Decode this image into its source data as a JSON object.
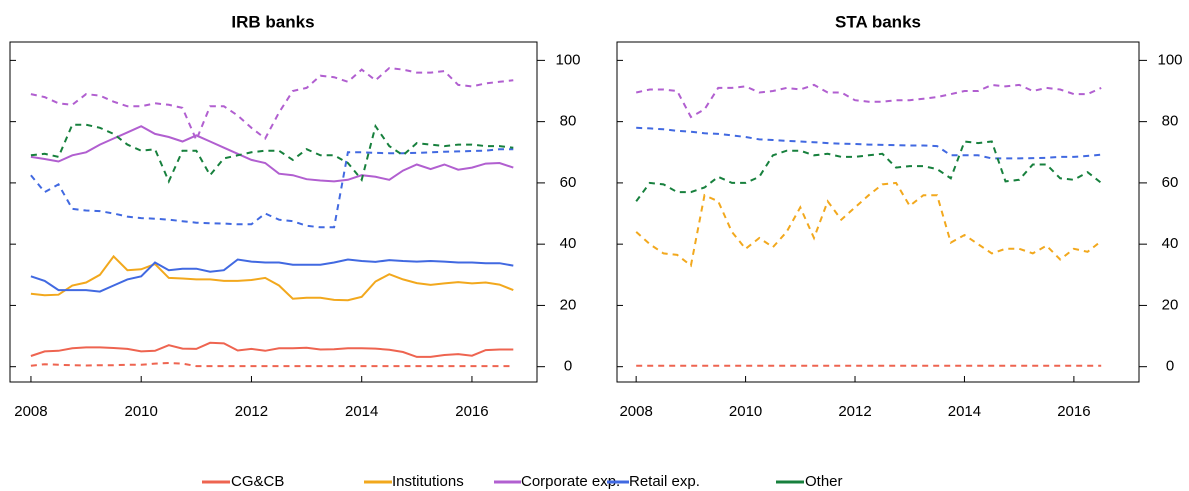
{
  "chart_data": [
    {
      "type": "line",
      "title": "IRB banks",
      "x": [
        2008,
        2008.25,
        2008.5,
        2008.75,
        2009,
        2009.25,
        2009.5,
        2009.75,
        2010,
        2010.25,
        2010.5,
        2010.75,
        2011,
        2011.25,
        2011.5,
        2011.75,
        2012,
        2012.25,
        2012.5,
        2012.75,
        2013,
        2013.25,
        2013.5,
        2013.75,
        2014,
        2014.25,
        2014.5,
        2014.75,
        2015,
        2015.25,
        2015.5,
        2015.75,
        2016,
        2016.25,
        2016.5,
        2016.75
      ],
      "xlim": [
        2007.62,
        2017.18
      ],
      "xticks": [
        2008,
        2010,
        2012,
        2014,
        2016
      ],
      "ylim": [
        -5,
        106
      ],
      "yticks": [
        0,
        20,
        40,
        60,
        80,
        100
      ],
      "series": [
        {
          "name": "CG&CB",
          "color": "#ee6450",
          "dash": false,
          "values": [
            3.5,
            5,
            5.2,
            6,
            6.3,
            6.3,
            6.1,
            5.8,
            5,
            5.2,
            7,
            5.9,
            5.8,
            7.8,
            7.6,
            5.3,
            5.8,
            5.2,
            6,
            6,
            6.2,
            5.6,
            5.7,
            6,
            6,
            5.9,
            5.5,
            4.8,
            3.2,
            3.2,
            3.8,
            4.1,
            3.6,
            5.4,
            5.6,
            5.6
          ]
        },
        {
          "name": "Institutions",
          "color": "#f2a81d",
          "dash": false,
          "values": [
            23.8,
            23.3,
            23.5,
            26.5,
            27.5,
            30,
            36,
            31.5,
            31.8,
            33.5,
            29,
            28.8,
            28.5,
            28.5,
            28,
            28,
            28.3,
            29,
            26.5,
            22.2,
            22.5,
            22.5,
            21.8,
            21.7,
            22.8,
            27.8,
            30.2,
            28.5,
            27.3,
            26.7,
            27.2,
            27.6,
            27.2,
            27.5,
            26.8,
            25
          ]
        },
        {
          "name": "Corporate exp.",
          "color": "#b15fd0",
          "dash": false,
          "values": [
            68.5,
            67.8,
            67,
            69,
            70,
            72.5,
            74.5,
            76.5,
            78.5,
            76,
            75,
            73.5,
            75.5,
            73.5,
            71.5,
            69.5,
            67.5,
            66.5,
            63,
            62.5,
            61.2,
            60.8,
            60.5,
            61,
            62.5,
            62,
            61,
            64,
            66,
            64.5,
            66,
            64.3,
            65,
            66.3,
            66.5,
            65
          ]
        },
        {
          "name": "Retail exp.",
          "color": "#4169e1",
          "dash": false,
          "values": [
            29.5,
            28,
            25,
            25,
            25,
            24.5,
            26.5,
            28.5,
            29.5,
            34,
            31.5,
            32,
            32,
            31,
            31.5,
            35,
            34.3,
            34,
            34,
            33.3,
            33.3,
            33.3,
            34,
            35,
            34.5,
            34.2,
            34.8,
            34.5,
            34.3,
            34.5,
            34.3,
            34,
            34,
            33.8,
            33.8,
            33
          ]
        },
        {
          "name": "CG&CB",
          "color": "#ee6450",
          "dash": true,
          "values": [
            0.3,
            0.8,
            0.6,
            0.5,
            0.4,
            0.5,
            0.5,
            0.6,
            0.6,
            1,
            1.2,
            1,
            0.2,
            0.2,
            0.2,
            0.2,
            0.2,
            0.2,
            0.2,
            0.2,
            0.2,
            0.2,
            0.2,
            0.2,
            0.2,
            0.2,
            0.2,
            0.2,
            0.2,
            0.2,
            0.2,
            0.2,
            0.2,
            0.2,
            0.2,
            0.2
          ]
        },
        {
          "name": "Corporate exp.",
          "color": "#b15fd0",
          "dash": true,
          "values": [
            89,
            88,
            86,
            85.5,
            89,
            88.5,
            86.5,
            85,
            85,
            86,
            85.5,
            84.5,
            74,
            85,
            85,
            82,
            78,
            74.5,
            83,
            90,
            91,
            95,
            94.5,
            93,
            97,
            93.5,
            97.5,
            97,
            96,
            96,
            96.5,
            92,
            91.5,
            92.5,
            93,
            93.5
          ]
        },
        {
          "name": "Retail exp.",
          "color": "#4169e1",
          "dash": true,
          "values": [
            62.5,
            57,
            59.5,
            51.5,
            51,
            50.8,
            50,
            49,
            48.5,
            48.3,
            48,
            47.5,
            47,
            46.8,
            46.7,
            46.5,
            46.5,
            50,
            48,
            47.5,
            46,
            45.5,
            45.5,
            70,
            70,
            69.8,
            69.7,
            69.7,
            69.8,
            70,
            70.2,
            70.3,
            70.4,
            70.5,
            71,
            71
          ]
        },
        {
          "name": "Other",
          "color": "#17803d",
          "dash": true,
          "values": [
            69,
            69.5,
            68.5,
            79,
            79,
            78,
            76,
            72.5,
            70.5,
            71,
            60.5,
            70.5,
            70.5,
            62.5,
            68,
            69,
            70,
            70.5,
            70.5,
            67.5,
            71,
            69,
            69,
            66.5,
            61,
            78.5,
            72,
            69,
            73,
            72.5,
            72,
            72.5,
            72.5,
            72,
            72,
            71.5
          ]
        }
      ]
    },
    {
      "type": "line",
      "title": "STA banks",
      "x": [
        2008,
        2008.25,
        2008.5,
        2008.75,
        2009,
        2009.25,
        2009.5,
        2009.75,
        2010,
        2010.25,
        2010.5,
        2010.75,
        2011,
        2011.25,
        2011.5,
        2011.75,
        2012,
        2012.25,
        2012.5,
        2012.75,
        2013,
        2013.25,
        2013.5,
        2013.75,
        2014,
        2014.25,
        2014.5,
        2014.75,
        2015,
        2015.25,
        2015.5,
        2015.75,
        2016,
        2016.25,
        2016.5
      ],
      "xlim": [
        2007.65,
        2017.19
      ],
      "xticks": [
        2008,
        2010,
        2012,
        2014,
        2016
      ],
      "ylim": [
        -5,
        106
      ],
      "yticks": [
        0,
        20,
        40,
        60,
        80,
        100
      ],
      "series": [
        {
          "name": "CG&CB",
          "color": "#ee6450",
          "dash": true,
          "values": [
            0.3,
            0.3,
            0.3,
            0.3,
            0.3,
            0.3,
            0.3,
            0.3,
            0.3,
            0.3,
            0.3,
            0.3,
            0.3,
            0.3,
            0.3,
            0.3,
            0.3,
            0.3,
            0.3,
            0.3,
            0.3,
            0.3,
            0.3,
            0.3,
            0.3,
            0.3,
            0.3,
            0.3,
            0.3,
            0.3,
            0.3,
            0.3,
            0.3,
            0.3,
            0.3
          ]
        },
        {
          "name": "Institutions",
          "color": "#f2a81d",
          "dash": true,
          "values": [
            44,
            40,
            37,
            36.5,
            33,
            56,
            54,
            44,
            38.5,
            42,
            39,
            44,
            52,
            42,
            54,
            48,
            52,
            56,
            59.5,
            60,
            52.5,
            56,
            56,
            40.5,
            43,
            40,
            37,
            38.5,
            38.5,
            37,
            39.5,
            35,
            38.5,
            37.5,
            41
          ]
        },
        {
          "name": "Corporate exp.",
          "color": "#b15fd0",
          "dash": true,
          "values": [
            89.5,
            90.5,
            90.5,
            90,
            81.5,
            84,
            91,
            91,
            91.5,
            89.5,
            90,
            91,
            90.5,
            92,
            89.5,
            89.5,
            87,
            86.5,
            86.5,
            87,
            87,
            87.5,
            88,
            89,
            90,
            90,
            92,
            91.5,
            92,
            90,
            91,
            90.5,
            89,
            89,
            91
          ]
        },
        {
          "name": "Retail exp.",
          "color": "#4169e1",
          "dash": true,
          "values": [
            78,
            77.8,
            77.5,
            77,
            76.7,
            76.2,
            76,
            75.5,
            75,
            74.2,
            74,
            73.7,
            73.5,
            73.3,
            73,
            72.8,
            72.7,
            72.5,
            72.4,
            72.3,
            72.2,
            72.2,
            72,
            69,
            69,
            69,
            68,
            68,
            68,
            68.1,
            68.2,
            68.5,
            68.5,
            68.8,
            69.2
          ]
        },
        {
          "name": "Other",
          "color": "#17803d",
          "dash": true,
          "values": [
            54,
            60,
            59.5,
            57,
            57,
            58.5,
            62,
            60,
            60,
            62,
            69,
            70.5,
            70.5,
            69,
            69.5,
            68.5,
            68.5,
            69,
            69.5,
            65,
            65.5,
            65.5,
            64.5,
            61.5,
            73.5,
            73,
            73.5,
            60.5,
            61,
            66,
            66,
            61.5,
            61,
            63.5,
            60
          ]
        }
      ]
    }
  ]
}
